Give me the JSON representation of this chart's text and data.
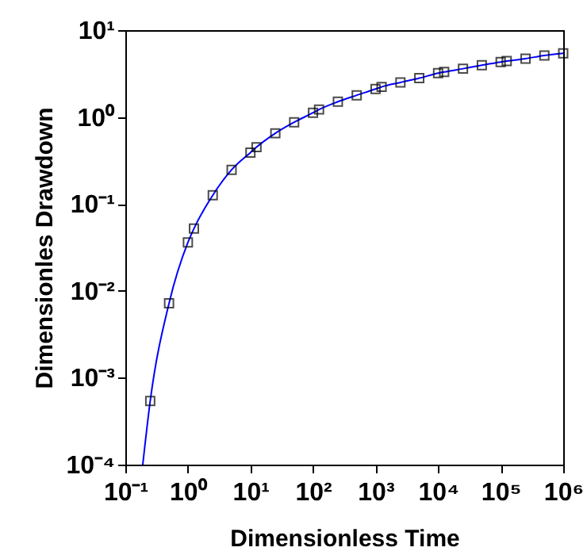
{
  "chart_data": {
    "type": "line",
    "xlabel": "Dimensionless Time",
    "ylabel": "Dimensionles Drawdown",
    "log": "xy",
    "grid": false,
    "xlim": [
      0.1,
      1000000
    ],
    "ylim": [
      0.0001,
      10
    ],
    "xticks": [
      {
        "value": 0.1,
        "label": "10⁻¹"
      },
      {
        "value": 1,
        "label": "10⁰"
      },
      {
        "value": 10,
        "label": "10¹"
      },
      {
        "value": 100,
        "label": "10²"
      },
      {
        "value": 1000,
        "label": "10³"
      },
      {
        "value": 10000,
        "label": "10⁴"
      },
      {
        "value": 100000,
        "label": "10⁵"
      },
      {
        "value": 1000000,
        "label": "10⁶"
      }
    ],
    "yticks": [
      {
        "value": 0.0001,
        "label": "10⁻⁴"
      },
      {
        "value": 0.001,
        "label": "10⁻³"
      },
      {
        "value": 0.01,
        "label": "10⁻²"
      },
      {
        "value": 0.1,
        "label": "10⁻¹"
      },
      {
        "value": 1,
        "label": "10⁰"
      },
      {
        "value": 10,
        "label": "10¹"
      }
    ],
    "series": [
      {
        "color": "#0000ff",
        "marker": "none",
        "line_style": "solid",
        "x": [
          0.19,
          0.25,
          0.5,
          1,
          1.25,
          2.5,
          5,
          10,
          12.5,
          25,
          50,
          100,
          125,
          250,
          500,
          1000,
          1250,
          2500,
          5000,
          10000,
          12500,
          25000,
          50000,
          100000,
          125000,
          250000,
          500000,
          1000000
        ],
        "values": [
          0.0001,
          0.00054,
          0.0072,
          0.036,
          0.052,
          0.126,
          0.247,
          0.39,
          0.45,
          0.65,
          0.87,
          1.12,
          1.22,
          1.5,
          1.78,
          2.1,
          2.22,
          2.5,
          2.8,
          3.2,
          3.3,
          3.6,
          3.95,
          4.3,
          4.4,
          4.7,
          5.1,
          5.4
        ]
      },
      {
        "type": "scatter",
        "color": "#000000",
        "marker": "square",
        "x": [
          0.25,
          0.5,
          1,
          1.25,
          2.5,
          5,
          10,
          12.5,
          25,
          50,
          100,
          125,
          250,
          500,
          1000,
          1250,
          2500,
          5000,
          10000,
          12500,
          25000,
          50000,
          100000,
          125000,
          250000,
          500000,
          1000000
        ],
        "values": [
          0.00054,
          0.0072,
          0.036,
          0.052,
          0.126,
          0.247,
          0.39,
          0.45,
          0.65,
          0.87,
          1.12,
          1.22,
          1.5,
          1.78,
          2.1,
          2.22,
          2.5,
          2.8,
          3.2,
          3.3,
          3.6,
          3.95,
          4.3,
          4.4,
          4.7,
          5.1,
          5.4
        ]
      }
    ]
  }
}
